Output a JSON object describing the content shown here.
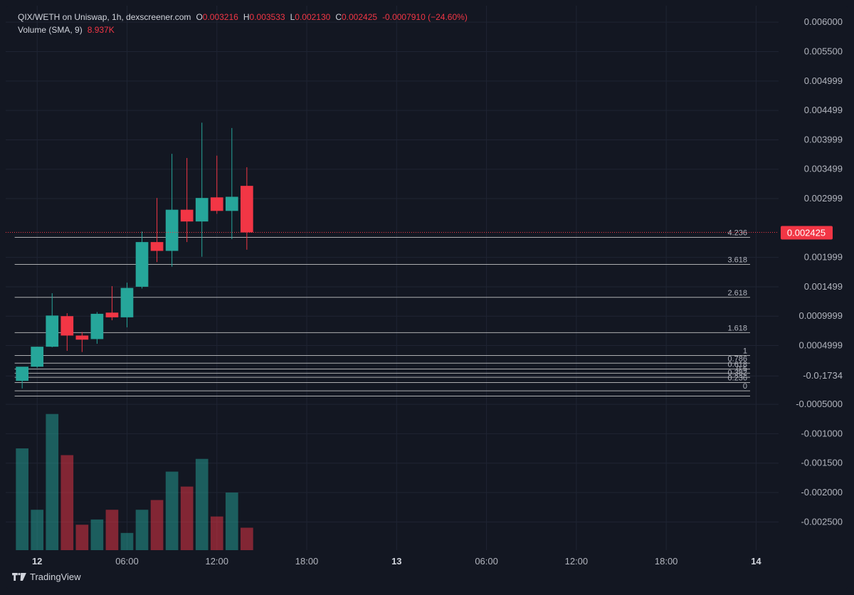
{
  "legend": {
    "pair": "QIX/WETH on Uniswap, 1h, dexscreener.com",
    "o_label": "O",
    "o_value": "0.003216",
    "h_label": "H",
    "h_value": "0.003533",
    "l_label": "L",
    "l_value": "0.002130",
    "c_label": "C",
    "c_value": "0.002425",
    "change": "-0.0007910 (−24.60%)",
    "volume_label": "Volume (SMA, 9)",
    "volume_value": "8.937K"
  },
  "brand": {
    "name": "TradingView",
    "icon": "tradingview-logo-icon"
  },
  "colors": {
    "background": "#131722",
    "grid": "#1f2433",
    "up": "#26a69a",
    "down": "#f23645",
    "text": "#d1d4dc",
    "axis_text": "#b2b5be",
    "fib_line": "#c9c9c9"
  },
  "chart_data": {
    "type": "candlestick",
    "symbol": "QIX/WETH",
    "interval": "1h",
    "last_price": "0.002425",
    "y_ticks": [
      {
        "value": 0.006,
        "label": "0.006000"
      },
      {
        "value": 0.0055,
        "label": "0.005500"
      },
      {
        "value": 0.004999,
        "label": "0.004999"
      },
      {
        "value": 0.004499,
        "label": "0.004499"
      },
      {
        "value": 0.003999,
        "label": "0.003999"
      },
      {
        "value": 0.003499,
        "label": "0.003499"
      },
      {
        "value": 0.002999,
        "label": "0.002999"
      },
      {
        "value": 0.001999,
        "label": "0.001999"
      },
      {
        "value": 0.001499,
        "label": "0.001499"
      },
      {
        "value": 0.0009999,
        "label": "0.0009999"
      },
      {
        "value": 0.0004999,
        "label": "0.0004999"
      },
      {
        "value": -1.734e-05,
        "label": "-0.0₇1734"
      },
      {
        "value": -0.0005,
        "label": "-0.0005000"
      },
      {
        "value": -0.001,
        "label": "-0.001000"
      },
      {
        "value": -0.0015,
        "label": "-0.001500"
      },
      {
        "value": -0.002,
        "label": "-0.002000"
      },
      {
        "value": -0.0025,
        "label": "-0.002500"
      }
    ],
    "y_range": [
      -0.00298,
      0.00628
    ],
    "x_ticks": [
      {
        "hour": 0,
        "label": "12",
        "bold": true
      },
      {
        "hour": 6,
        "label": "06:00"
      },
      {
        "hour": 12,
        "label": "12:00"
      },
      {
        "hour": 18,
        "label": "18:00"
      },
      {
        "hour": 24,
        "label": "13",
        "bold": true
      },
      {
        "hour": 30,
        "label": "06:00"
      },
      {
        "hour": 36,
        "label": "12:00"
      },
      {
        "hour": 42,
        "label": "18:00"
      },
      {
        "hour": 48,
        "label": "14",
        "bold": true
      }
    ],
    "x_range_hours": [
      -2.1,
      49.5
    ],
    "candles": [
      {
        "t": -1,
        "o": -0.0001,
        "h": 0.00012,
        "l": -0.00023,
        "c": 0.00014
      },
      {
        "t": 0,
        "o": 0.00014,
        "h": 0.00048,
        "l": 0.00012,
        "c": 0.00048
      },
      {
        "t": 1,
        "o": 0.00048,
        "h": 0.00139,
        "l": 0.00047,
        "c": 0.00101
      },
      {
        "t": 2,
        "o": 0.001,
        "h": 0.00105,
        "l": 0.00041,
        "c": 0.00067
      },
      {
        "t": 3,
        "o": 0.00067,
        "h": 0.00073,
        "l": 0.00039,
        "c": 0.0006
      },
      {
        "t": 4,
        "o": 0.00061,
        "h": 0.00107,
        "l": 0.00053,
        "c": 0.00104
      },
      {
        "t": 5,
        "o": 0.00106,
        "h": 0.00151,
        "l": 0.00093,
        "c": 0.00098
      },
      {
        "t": 6,
        "o": 0.00098,
        "h": 0.00157,
        "l": 0.00081,
        "c": 0.00148
      },
      {
        "t": 7,
        "o": 0.0015,
        "h": 0.00244,
        "l": 0.00147,
        "c": 0.00226
      },
      {
        "t": 8,
        "o": 0.00226,
        "h": 0.00301,
        "l": 0.00192,
        "c": 0.00211
      },
      {
        "t": 9,
        "o": 0.00211,
        "h": 0.00376,
        "l": 0.00184,
        "c": 0.00281
      },
      {
        "t": 10,
        "o": 0.00281,
        "h": 0.00369,
        "l": 0.00226,
        "c": 0.00261
      },
      {
        "t": 11,
        "o": 0.00261,
        "h": 0.00429,
        "l": 0.00201,
        "c": 0.00301
      },
      {
        "t": 12,
        "o": 0.00302,
        "h": 0.00373,
        "l": 0.00274,
        "c": 0.00279
      },
      {
        "t": 13,
        "o": 0.00279,
        "h": 0.0042,
        "l": 0.00231,
        "c": 0.00303
      },
      {
        "t": 14,
        "o": 0.003216,
        "h": 0.003533,
        "l": 0.00213,
        "c": 0.002425
      }
    ],
    "volume": [
      {
        "t": -1,
        "up": true,
        "v": 13.6
      },
      {
        "t": 0,
        "up": true,
        "v": 5.4
      },
      {
        "t": 1,
        "up": true,
        "v": 18.2
      },
      {
        "t": 2,
        "up": false,
        "v": 12.7
      },
      {
        "t": 3,
        "up": false,
        "v": 3.4
      },
      {
        "t": 4,
        "up": true,
        "v": 4.1
      },
      {
        "t": 5,
        "up": false,
        "v": 5.4
      },
      {
        "t": 6,
        "up": true,
        "v": 2.3
      },
      {
        "t": 7,
        "up": true,
        "v": 5.4
      },
      {
        "t": 8,
        "up": false,
        "v": 6.7
      },
      {
        "t": 9,
        "up": true,
        "v": 10.5
      },
      {
        "t": 10,
        "up": false,
        "v": 8.5
      },
      {
        "t": 11,
        "up": true,
        "v": 12.2
      },
      {
        "t": 12,
        "up": false,
        "v": 4.5
      },
      {
        "t": 13,
        "up": true,
        "v": 7.7
      },
      {
        "t": 14,
        "up": false,
        "v": 3.0
      }
    ],
    "volume_max": 19.5,
    "fib": {
      "start_hour": -1.5,
      "end_hour": 47.6,
      "levels": [
        {
          "ratio": "4.236",
          "value": 0.00234
        },
        {
          "ratio": "3.618",
          "value": 0.00188
        },
        {
          "ratio": "2.618",
          "value": 0.00132
        },
        {
          "ratio": "1.618",
          "value": 0.00072
        },
        {
          "ratio": "1",
          "value": 0.00033
        },
        {
          "ratio": "0.786",
          "value": 0.0002
        },
        {
          "ratio": "0.618",
          "value": 0.0001
        },
        {
          "ratio": "0.5",
          "value": 3e-05
        },
        {
          "ratio": "0.382",
          "value": -4e-05
        },
        {
          "ratio": "0.236",
          "value": -0.00013
        },
        {
          "ratio": "0",
          "value": -0.00027
        }
      ],
      "bottom_value": -0.00036
    }
  }
}
